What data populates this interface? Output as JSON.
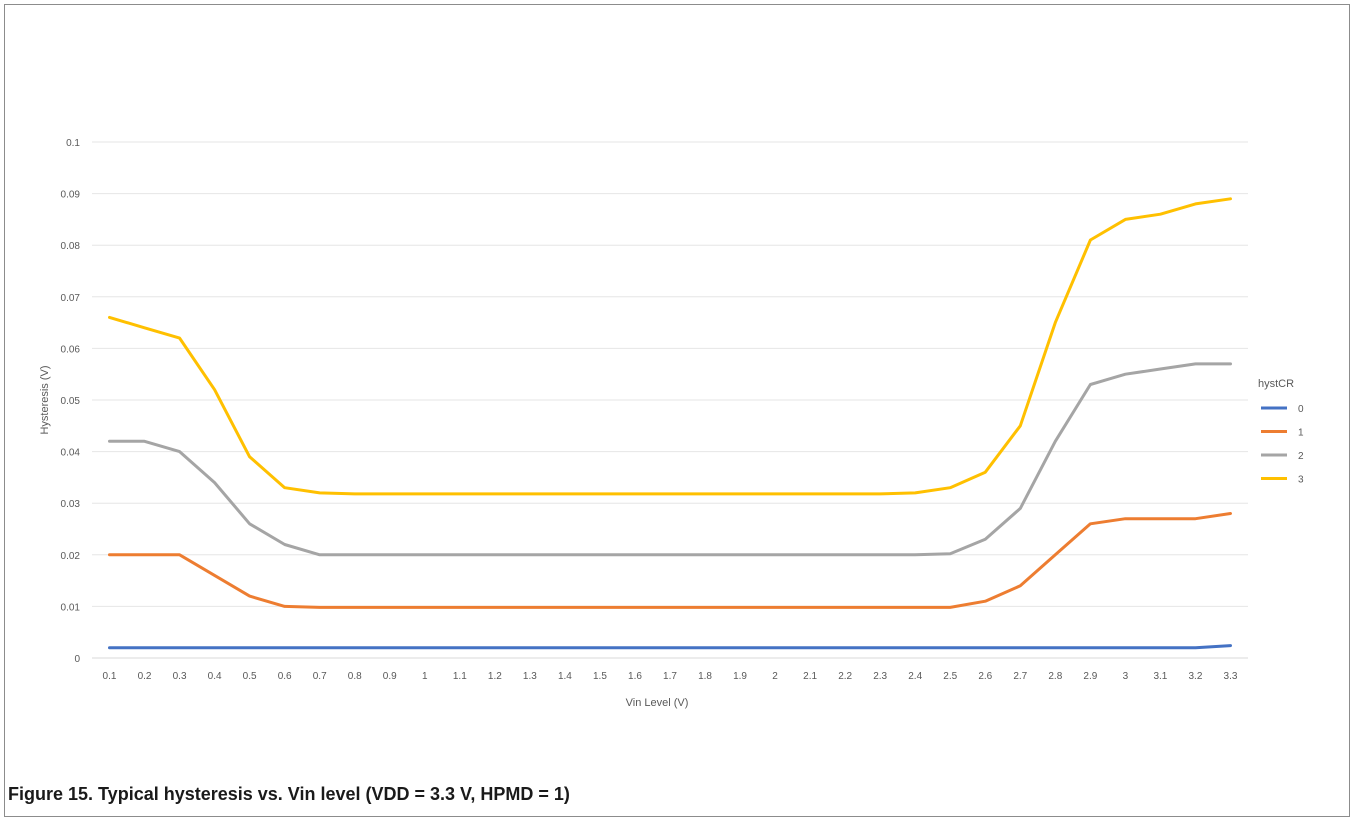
{
  "figure": {
    "caption": "Figure 15.  Typical hysteresis vs. Vin level (VDD = 3.3 V, HPMD = 1)"
  },
  "chart_data": {
    "type": "line",
    "title": "",
    "xlabel": "Vin Level (V)",
    "ylabel": "Hysteresis (V)",
    "ylim": [
      0,
      0.1
    ],
    "yticks": [
      "0",
      "0.01",
      "0.02",
      "0.03",
      "0.04",
      "0.05",
      "0.06",
      "0.07",
      "0.08",
      "0.09",
      "0.1"
    ],
    "grid": true,
    "legend_title": "hystCR",
    "legend_position": "right",
    "x": [
      "0.1",
      "0.2",
      "0.3",
      "0.4",
      "0.5",
      "0.6",
      "0.7",
      "0.8",
      "0.9",
      "1",
      "1.1",
      "1.2",
      "1.3",
      "1.4",
      "1.5",
      "1.6",
      "1.7",
      "1.8",
      "1.9",
      "2",
      "2.1",
      "2.2",
      "2.3",
      "2.4",
      "2.5",
      "2.6",
      "2.7",
      "2.8",
      "2.9",
      "3",
      "3.1",
      "3.2",
      "3.3"
    ],
    "series": [
      {
        "name": "0",
        "color": "#4472c4",
        "values": [
          0.002,
          0.002,
          0.002,
          0.002,
          0.002,
          0.002,
          0.002,
          0.002,
          0.002,
          0.002,
          0.002,
          0.002,
          0.002,
          0.002,
          0.002,
          0.002,
          0.002,
          0.002,
          0.002,
          0.002,
          0.002,
          0.002,
          0.002,
          0.002,
          0.002,
          0.002,
          0.002,
          0.002,
          0.002,
          0.002,
          0.002,
          0.002,
          0.0024
        ]
      },
      {
        "name": "1",
        "color": "#ed7d31",
        "values": [
          0.02,
          0.02,
          0.02,
          0.016,
          0.012,
          0.01,
          0.0098,
          0.0098,
          0.0098,
          0.0098,
          0.0098,
          0.0098,
          0.0098,
          0.0098,
          0.0098,
          0.0098,
          0.0098,
          0.0098,
          0.0098,
          0.0098,
          0.0098,
          0.0098,
          0.0098,
          0.0098,
          0.0098,
          0.011,
          0.014,
          0.02,
          0.026,
          0.027,
          0.027,
          0.027,
          0.028
        ]
      },
      {
        "name": "2",
        "color": "#a5a5a5",
        "values": [
          0.042,
          0.042,
          0.04,
          0.034,
          0.026,
          0.022,
          0.02,
          0.02,
          0.02,
          0.02,
          0.02,
          0.02,
          0.02,
          0.02,
          0.02,
          0.02,
          0.02,
          0.02,
          0.02,
          0.02,
          0.02,
          0.02,
          0.02,
          0.02,
          0.0202,
          0.023,
          0.029,
          0.042,
          0.053,
          0.055,
          0.056,
          0.057,
          0.057
        ]
      },
      {
        "name": "3",
        "color": "#ffc000",
        "values": [
          0.066,
          0.064,
          0.062,
          0.052,
          0.039,
          0.033,
          0.032,
          0.0318,
          0.0318,
          0.0318,
          0.0318,
          0.0318,
          0.0318,
          0.0318,
          0.0318,
          0.0318,
          0.0318,
          0.0318,
          0.0318,
          0.0318,
          0.0318,
          0.0318,
          0.0318,
          0.032,
          0.033,
          0.036,
          0.045,
          0.065,
          0.081,
          0.085,
          0.086,
          0.088,
          0.089
        ]
      }
    ]
  }
}
